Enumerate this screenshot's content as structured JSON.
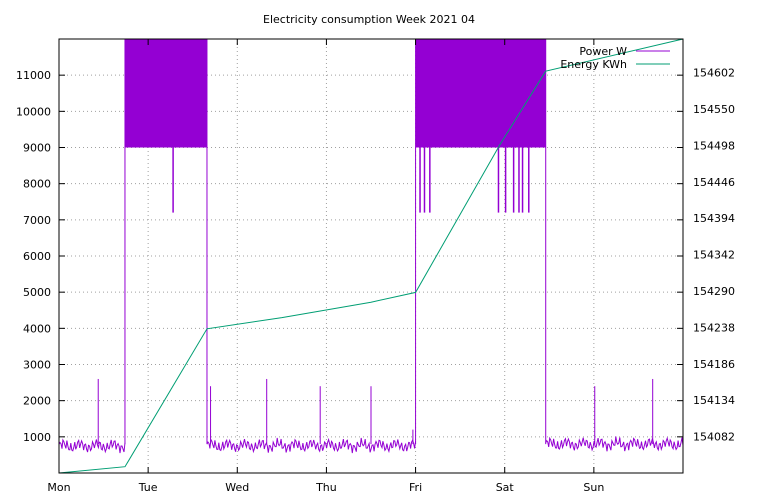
{
  "chart_data": {
    "type": "line",
    "title": "Electricity consumption Week 2021 04",
    "x_categories": [
      "Mon",
      "Tue",
      "Wed",
      "Thu",
      "Fri",
      "Sat",
      "Sun"
    ],
    "x_range_days": [
      0,
      7
    ],
    "y_left": {
      "ticks": [
        1000,
        2000,
        3000,
        4000,
        5000,
        6000,
        7000,
        8000,
        9000,
        10000,
        11000
      ],
      "range": [
        0,
        12000
      ]
    },
    "y_right": {
      "ticks": [
        154082,
        154134,
        154186,
        154238,
        154290,
        154342,
        154394,
        154446,
        154498,
        154550,
        154602
      ],
      "range": [
        154030,
        154650
      ]
    },
    "grid": true,
    "legend_position": "top-right",
    "series": [
      {
        "name": "Power W",
        "axis": "left",
        "color": "#9400d3",
        "baseline_segments": [
          {
            "start": 0.0,
            "end": 0.74,
            "level": 750
          },
          {
            "start": 1.66,
            "end": 4.0,
            "level": 760
          },
          {
            "start": 5.46,
            "end": 7.0,
            "level": 800
          }
        ],
        "high_blocks": [
          {
            "start": 0.74,
            "end": 1.66,
            "low": 9000,
            "high": 12000
          },
          {
            "start": 4.0,
            "end": 5.46,
            "low": 9000,
            "high": 12000
          }
        ],
        "spikes": [
          {
            "x": 0.44,
            "y": 2600
          },
          {
            "x": 1.7,
            "y": 2400
          },
          {
            "x": 2.33,
            "y": 2600
          },
          {
            "x": 2.93,
            "y": 2400
          },
          {
            "x": 3.5,
            "y": 2400
          },
          {
            "x": 3.97,
            "y": 1200
          },
          {
            "x": 6.01,
            "y": 2400
          },
          {
            "x": 6.66,
            "y": 2600
          }
        ],
        "dips": [
          {
            "x": 1.28,
            "y": 7200
          },
          {
            "x": 4.05,
            "y": 7200
          },
          {
            "x": 4.1,
            "y": 7200
          },
          {
            "x": 4.16,
            "y": 7200
          },
          {
            "x": 4.93,
            "y": 7200
          },
          {
            "x": 5.01,
            "y": 7200
          },
          {
            "x": 5.1,
            "y": 7200
          },
          {
            "x": 5.16,
            "y": 7200
          },
          {
            "x": 5.2,
            "y": 7200
          },
          {
            "x": 5.27,
            "y": 7200
          }
        ]
      },
      {
        "name": "Energy KWh",
        "axis": "right",
        "color": "#009e73",
        "points": [
          {
            "x": 0.0,
            "y": 154030
          },
          {
            "x": 0.74,
            "y": 154039
          },
          {
            "x": 1.66,
            "y": 154236
          },
          {
            "x": 2.5,
            "y": 154252
          },
          {
            "x": 3.5,
            "y": 154274
          },
          {
            "x": 4.0,
            "y": 154288
          },
          {
            "x": 4.95,
            "y": 154500
          },
          {
            "x": 5.46,
            "y": 154604
          },
          {
            "x": 7.0,
            "y": 154650
          }
        ]
      }
    ]
  }
}
